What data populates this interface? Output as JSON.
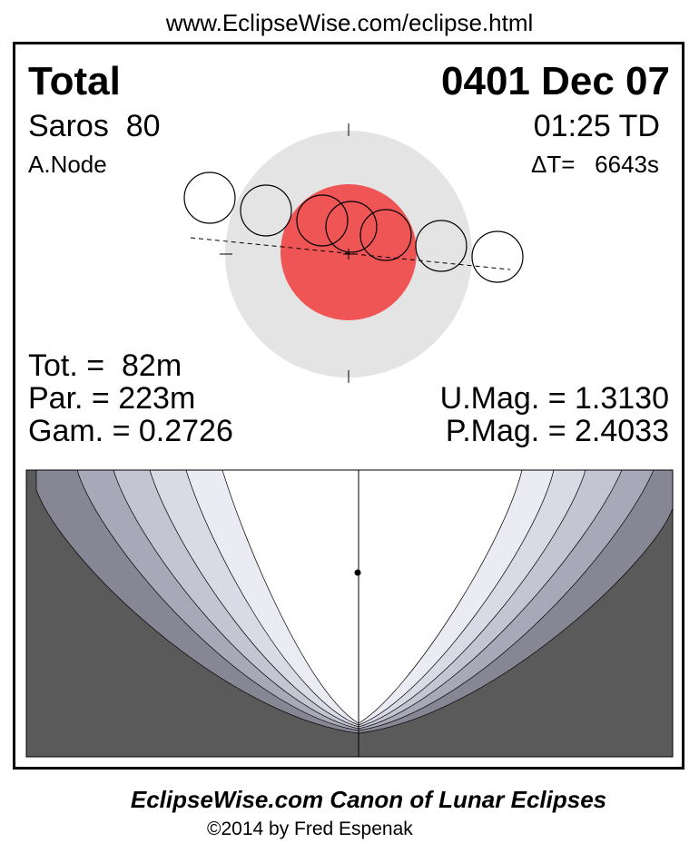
{
  "url": "www.EclipseWise.com/eclipse.html",
  "eclipse": {
    "type": "Total",
    "date": "0401 Dec 07",
    "saros": "Saros  80",
    "time": "01:25 TD",
    "node": "A.Node",
    "delta_t": "ΔT=   6643s"
  },
  "stats": {
    "tot": "Tot. =  82m",
    "par": "Par. = 223m",
    "gam": "Gam. = 0.2726",
    "umag": "U.Mag. = 1.3130",
    "pmag": "P.Mag. = 2.4033"
  },
  "colors": {
    "umbra": "#f05555",
    "penumbra": "#e4e4e4",
    "night": "#5a5a5a"
  },
  "footer": {
    "title": "EclipseWise.com Canon of Lunar Eclipses",
    "copyright": "©2014 by Fred Espenak"
  }
}
